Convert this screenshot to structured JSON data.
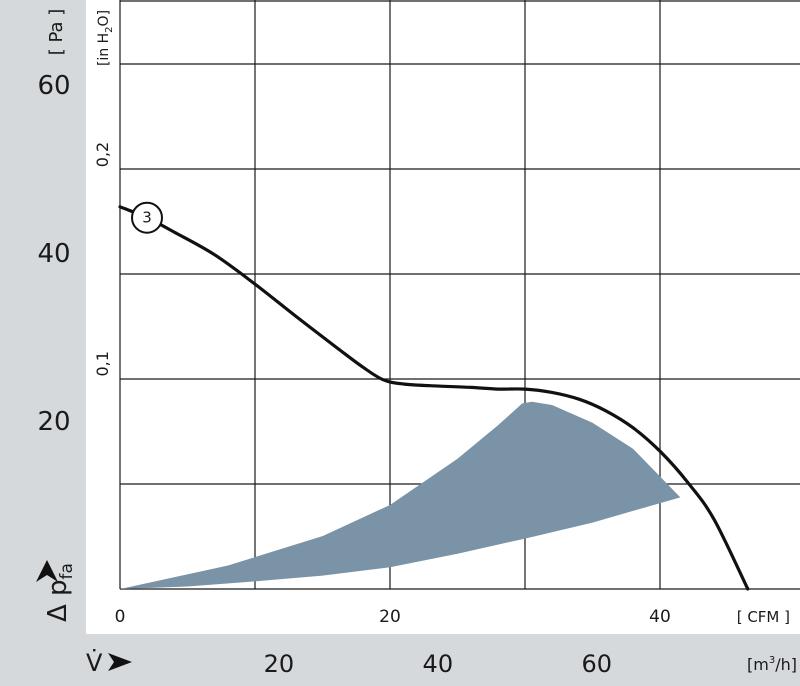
{
  "chart_data": {
    "type": "line",
    "axes": {
      "pressure_pa": {
        "unit": "[ Pa ]",
        "ticks": [
          "20",
          "40",
          "60"
        ],
        "range": [
          0,
          70
        ]
      },
      "pressure_inh2o": {
        "unit": "[in H2O]",
        "ticks": [
          "0,1",
          "0,2"
        ]
      },
      "flow_cfm": {
        "unit": "[ CFM ]",
        "ticks": [
          "0",
          "20",
          "40"
        ],
        "range": [
          0,
          50
        ]
      },
      "flow_m3h": {
        "unit": "[m³/h]",
        "ticks": [
          "20",
          "40",
          "60"
        ]
      },
      "y_symbol": "Δ p",
      "y_subscript": "fa",
      "x_symbol": "V̇"
    },
    "grid": true,
    "series": [
      {
        "name": "3",
        "x": [
          0,
          2,
          4,
          7,
          10,
          13,
          16,
          18,
          19.5,
          21,
          23,
          26,
          28,
          30,
          32,
          34,
          36,
          38,
          40,
          42,
          44,
          46.5
        ],
        "y": [
          45.5,
          44.2,
          42.5,
          39.8,
          36.3,
          32.5,
          28.8,
          26.4,
          24.9,
          24.4,
          24.2,
          24,
          23.8,
          23.8,
          23.4,
          22.6,
          21.2,
          19.2,
          16.4,
          12.8,
          8.3,
          0
        ]
      }
    ],
    "operating_range": {
      "upper": [
        [
          0,
          0
        ],
        [
          8,
          2.8
        ],
        [
          15,
          6.3
        ],
        [
          20,
          10
        ],
        [
          25,
          15.5
        ],
        [
          28,
          19.5
        ],
        [
          29.8,
          22.1
        ],
        [
          30.5,
          22.3
        ],
        [
          32,
          21.9
        ],
        [
          35,
          19.8
        ],
        [
          38,
          16.7
        ],
        [
          41.5,
          10.9
        ]
      ],
      "lower": [
        [
          41.5,
          10.9
        ],
        [
          38,
          9.3
        ],
        [
          35,
          7.9
        ],
        [
          30,
          6
        ],
        [
          25,
          4.2
        ],
        [
          20,
          2.6
        ],
        [
          15,
          1.6
        ],
        [
          10,
          0.9
        ],
        [
          5,
          0.3
        ],
        [
          0,
          0
        ]
      ],
      "color": "#7a93a6"
    }
  }
}
